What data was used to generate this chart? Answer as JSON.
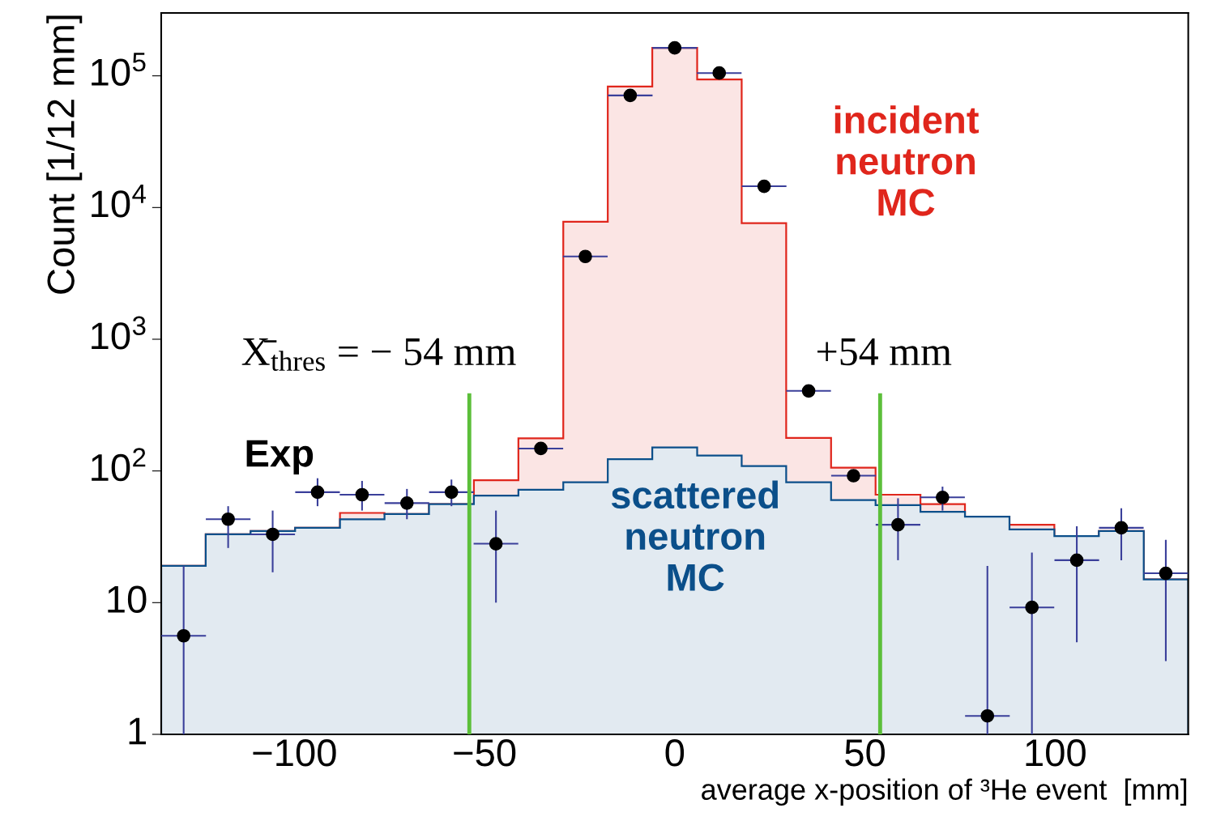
{
  "chart_data": {
    "type": "histogram",
    "xlabel": "average x-position of ³He event  [mm]",
    "ylabel": "Count [1/12 mm]",
    "bins": [
      -135,
      -123.3,
      -111.5,
      -99.8,
      -88.0,
      -76.3,
      -64.6,
      -52.8,
      -41.1,
      -29.3,
      -17.6,
      -5.9,
      5.9,
      17.6,
      29.3,
      41.1,
      52.8,
      64.6,
      76.3,
      88.0,
      99.8,
      111.5,
      123.3,
      135
    ],
    "series": [
      {
        "name": "incident neutron MC",
        "color": "#e0261c",
        "values": [
          19,
          33,
          35,
          37,
          48,
          47,
          56,
          85,
          177,
          7800,
          83000,
          163000,
          94000,
          7600,
          178,
          106,
          66,
          56,
          45,
          39,
          32,
          35,
          15
        ]
      },
      {
        "name": "scattered neutron MC",
        "color": "#0b4f8a",
        "values": [
          19,
          33,
          35,
          37,
          43,
          47,
          56,
          65,
          72,
          82,
          123,
          151,
          131,
          109,
          82,
          60,
          55,
          49,
          45,
          36,
          32,
          35,
          15
        ]
      },
      {
        "name": "Exp",
        "type": "scatter",
        "color": "#000000",
        "marker": "circle",
        "x": [
          -129.1,
          -117.4,
          -105.7,
          -93.9,
          -82.2,
          -70.4,
          -58.7,
          -47.0,
          -35.2,
          -23.5,
          -11.7,
          0,
          11.7,
          23.5,
          35.2,
          47.0,
          58.7,
          70.4,
          82.2,
          93.9,
          105.7,
          117.4,
          129.1
        ],
        "values": [
          5.6,
          43,
          33,
          69,
          66,
          57,
          69,
          28,
          148,
          4250,
          71000,
          163000,
          105000,
          14500,
          405,
          92,
          39,
          63,
          1.38,
          9.2,
          21,
          37,
          16.7
        ],
        "errors": [
          [
            1,
            19
          ],
          [
            26,
            54
          ],
          [
            17,
            50
          ],
          [
            54,
            88
          ],
          [
            50,
            84
          ],
          [
            43,
            73
          ],
          [
            54,
            86
          ],
          [
            10,
            50
          ],
          null,
          null,
          null,
          null,
          null,
          null,
          null,
          null,
          [
            21,
            62
          ],
          [
            50,
            76
          ],
          [
            1,
            19
          ],
          [
            1,
            24
          ],
          [
            5,
            38
          ],
          [
            21,
            52
          ],
          [
            3.6,
            30
          ]
        ],
        "xerrors": [
          5.87,
          5.87,
          5.87,
          5.87,
          5.87,
          5.87,
          5.87,
          5.87,
          5.87,
          5.87,
          5.87,
          5.87,
          5.87,
          5.87,
          5.87,
          5.87,
          5.87,
          5.87,
          5.87,
          5.87,
          5.87,
          5.87,
          5.87
        ]
      }
    ],
    "ref_lines": [
      {
        "axis": "x",
        "value": -54,
        "label": "X̄$_{thres}$ = − 54 mm",
        "color": "#5cbf3a"
      },
      {
        "axis": "x",
        "value": 54,
        "label": "+54 mm",
        "color": "#5cbf3a"
      }
    ],
    "log": "y",
    "xlim": [
      -135,
      135
    ],
    "ylim": [
      1,
      300000
    ],
    "xticks": [
      {
        "value": -100,
        "label": "−100"
      },
      {
        "value": -50,
        "label": "−50"
      },
      0,
      50,
      100
    ],
    "yticks": [
      1,
      10,
      {
        "value": 100,
        "label": "10$^{2}$"
      },
      {
        "value": 1000,
        "label": "10$^{3}$"
      },
      {
        "value": 10000,
        "label": "10$^{4}$"
      },
      {
        "value": 100000,
        "label": "10$^{5}$"
      }
    ],
    "grid": false
  }
}
